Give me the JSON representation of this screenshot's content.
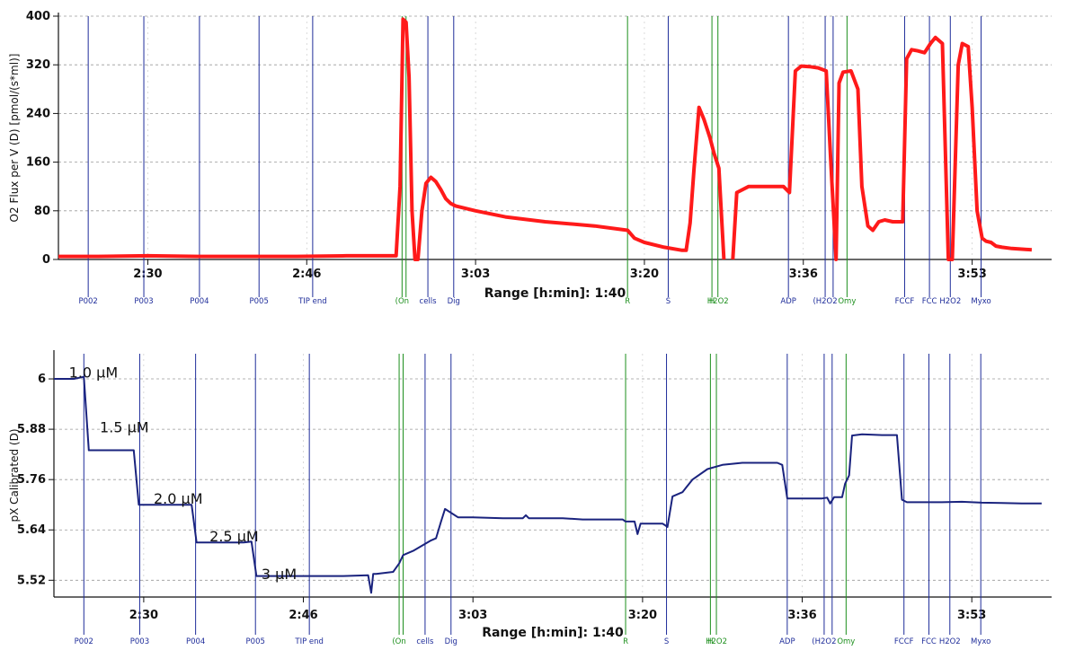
{
  "chart_data": [
    {
      "type": "line",
      "ylabel": "O2 Flux per V (D) [pmol/(s*ml)]",
      "xlabel": "Range [h:min]: 1:40",
      "ylim": [
        0,
        400
      ],
      "yticks": [
        "0",
        "80",
        "160",
        "240",
        "320",
        "400"
      ],
      "xticks": [
        {
          "t": 150,
          "label": "2:30"
        },
        {
          "t": 166,
          "label": "2:46"
        },
        {
          "t": 183,
          "label": "3:03"
        },
        {
          "t": 200,
          "label": "3:20"
        },
        {
          "t": 216,
          "label": "3:36"
        },
        {
          "t": 233,
          "label": "3:53"
        }
      ],
      "xlim": [
        141,
        241
      ],
      "grid": true,
      "events": [
        {
          "t": 144.0,
          "label": "P002",
          "color": "#1f2d9a"
        },
        {
          "t": 149.6,
          "label": "P003",
          "color": "#1f2d9a"
        },
        {
          "t": 155.2,
          "label": "P004",
          "color": "#1f2d9a"
        },
        {
          "t": 161.2,
          "label": "P005",
          "color": "#1f2d9a"
        },
        {
          "t": 166.6,
          "label": "TIP end",
          "color": "#1f2d9a"
        },
        {
          "t": 175.6,
          "label": "(On",
          "color": "#1d8f1d"
        },
        {
          "t": 176.0,
          "label": "",
          "color": "#1d8f1d"
        },
        {
          "t": 178.2,
          "label": "cells",
          "color": "#1f2d9a"
        },
        {
          "t": 180.8,
          "label": "Dig",
          "color": "#1f2d9a"
        },
        {
          "t": 198.3,
          "label": "R",
          "color": "#1d8f1d"
        },
        {
          "t": 202.4,
          "label": "S",
          "color": "#1f2d9a"
        },
        {
          "t": 206.8,
          "label": "H",
          "color": "#1d8f1d"
        },
        {
          "t": 207.4,
          "label": "H2O2",
          "color": "#1d8f1d"
        },
        {
          "t": 214.5,
          "label": "ADP",
          "color": "#1f2d9a"
        },
        {
          "t": 218.2,
          "label": "(H2O2",
          "color": "#1f2d9a"
        },
        {
          "t": 219.0,
          "label": "",
          "color": "#1f2d9a"
        },
        {
          "t": 220.4,
          "label": "Omy",
          "color": "#1d8f1d"
        },
        {
          "t": 226.2,
          "label": "FCCF",
          "color": "#1f2d9a"
        },
        {
          "t": 228.7,
          "label": "FCC",
          "color": "#1f2d9a"
        },
        {
          "t": 230.8,
          "label": "H2O2",
          "color": "#1f2d9a"
        },
        {
          "t": 233.9,
          "label": "Myxo",
          "color": "#1f2d9a"
        }
      ],
      "series": [
        {
          "color": "#ff1a1a",
          "x": [
            141,
            145,
            150,
            155,
            160,
            165,
            170,
            175,
            175.4,
            175.7,
            176.0,
            176.3,
            176.6,
            176.9,
            177.2,
            177.6,
            178.0,
            178.5,
            179.0,
            179.5,
            180.0,
            180.5,
            181.0,
            183,
            186,
            190,
            195,
            198.3,
            199.0,
            200,
            202,
            203.8,
            204.2,
            204.6,
            205.0,
            205.5,
            206.0,
            206.6,
            207.0,
            207.5,
            208.0,
            208.5,
            208.9,
            209.3,
            210.5,
            212,
            214,
            214.6,
            215.2,
            215.8,
            216.6,
            217.5,
            218.3,
            218.8,
            219.3,
            219.6,
            220.0,
            220.8,
            221.5,
            221.9,
            222.5,
            223.0,
            223.6,
            224.2,
            225.0,
            226.0,
            226.4,
            226.9,
            227.5,
            228.2,
            228.8,
            229.3,
            230.0,
            230.6,
            231.0,
            231.6,
            232.0,
            232.6,
            233.0,
            233.5,
            234.0,
            234.4,
            234.9,
            235.4,
            236.0,
            237.0,
            238.0,
            239.0
          ],
          "y": [
            5,
            5,
            6,
            5,
            5,
            5,
            6,
            6,
            120,
            395,
            390,
            300,
            80,
            0,
            0,
            80,
            125,
            135,
            128,
            115,
            100,
            92,
            88,
            80,
            70,
            62,
            55,
            48,
            35,
            28,
            20,
            15,
            15,
            60,
            150,
            250,
            230,
            200,
            175,
            150,
            0,
            null,
            0,
            110,
            120,
            120,
            120,
            110,
            310,
            318,
            317,
            315,
            310,
            150,
            0,
            290,
            308,
            310,
            280,
            120,
            55,
            48,
            62,
            65,
            62,
            62,
            330,
            345,
            343,
            340,
            355,
            365,
            355,
            0,
            0,
            320,
            355,
            350,
            250,
            80,
            35,
            30,
            28,
            22,
            20,
            18,
            17,
            16
          ]
        }
      ]
    },
    {
      "type": "line",
      "ylabel": "pX Calibrated (D)",
      "xlabel": "Range [h:min]: 1:40",
      "ylim": [
        5.48,
        6.06
      ],
      "yticks": [
        "5.52",
        "5.64",
        "5.76",
        "5.88",
        "6"
      ],
      "xticks": [
        {
          "t": 150,
          "label": "2:30"
        },
        {
          "t": 166,
          "label": "2:46"
        },
        {
          "t": 183,
          "label": "3:03"
        },
        {
          "t": 200,
          "label": "3:20"
        },
        {
          "t": 216,
          "label": "3:36"
        },
        {
          "t": 233,
          "label": "3:53"
        }
      ],
      "xlim": [
        141,
        241
      ],
      "grid": true,
      "annotations": [
        {
          "t": 142.5,
          "y": 6.02,
          "label": "1.0 µM"
        },
        {
          "t": 145.6,
          "y": 5.89,
          "label": "1.5 µM"
        },
        {
          "t": 151.0,
          "y": 5.72,
          "label": "2.0 µM"
        },
        {
          "t": 156.6,
          "y": 5.63,
          "label": "2.5 µM"
        },
        {
          "t": 161.8,
          "y": 5.54,
          "label": "3 µM"
        }
      ],
      "series": [
        {
          "color": "#1a237e",
          "x": [
            141,
            143.0,
            144.0,
            144.5,
            148.0,
            149.0,
            149.5,
            154.0,
            154.8,
            155.3,
            160.0,
            160.8,
            161.3,
            165,
            170,
            172.5,
            172.8,
            173.0,
            173.3,
            175.0,
            175.6,
            176.0,
            177.0,
            178.8,
            179.3,
            179.8,
            180.2,
            181.5,
            183,
            186,
            188,
            188.3,
            188.6,
            190,
            192,
            194,
            196,
            198.0,
            198.3,
            199.2,
            199.5,
            199.8,
            200.5,
            202.0,
            202.2,
            202.5,
            203.0,
            204.0,
            205.0,
            206.5,
            208.0,
            210.0,
            212.0,
            213.5,
            214.0,
            214.5,
            216.0,
            218.0,
            218.5,
            218.8,
            219.2,
            220.0,
            220.3,
            220.7,
            221.0,
            222.0,
            224.0,
            225.5,
            226.0,
            226.5,
            228.0,
            230.0,
            232.0,
            234.0,
            236.0,
            238.0,
            240.0
          ],
          "y": [
            6.0,
            6.0,
            6.005,
            5.83,
            5.83,
            5.83,
            5.7,
            5.7,
            5.7,
            5.61,
            5.61,
            5.612,
            5.53,
            5.53,
            5.53,
            5.532,
            5.49,
            5.535,
            5.535,
            5.54,
            5.56,
            5.58,
            5.59,
            5.615,
            5.62,
            5.66,
            5.69,
            5.67,
            5.67,
            5.668,
            5.668,
            5.675,
            5.668,
            5.668,
            5.668,
            5.665,
            5.665,
            5.665,
            5.66,
            5.66,
            5.63,
            5.655,
            5.655,
            5.655,
            5.652,
            5.647,
            5.72,
            5.73,
            5.76,
            5.785,
            5.795,
            5.8,
            5.8,
            5.8,
            5.795,
            5.715,
            5.715,
            5.715,
            5.717,
            5.703,
            5.718,
            5.718,
            5.75,
            5.77,
            5.865,
            5.868,
            5.866,
            5.866,
            5.712,
            5.706,
            5.706,
            5.706,
            5.707,
            5.705,
            5.704,
            5.703,
            5.703
          ]
        }
      ]
    }
  ]
}
